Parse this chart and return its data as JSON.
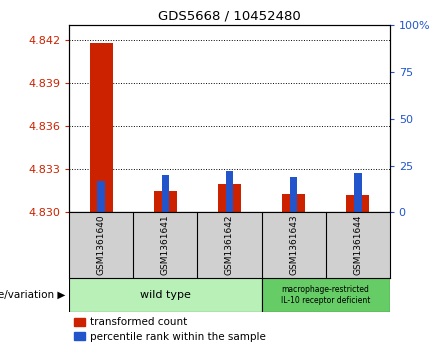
{
  "title": "GDS5668 / 10452480",
  "samples": [
    "GSM1361640",
    "GSM1361641",
    "GSM1361642",
    "GSM1361643",
    "GSM1361644"
  ],
  "transformed_count": [
    4.8418,
    4.8315,
    4.832,
    4.8313,
    4.8312
  ],
  "percentile_rank": [
    17,
    20,
    22,
    19,
    21
  ],
  "ylim_left": [
    4.83,
    4.843
  ],
  "ylim_right": [
    0,
    100
  ],
  "yticks_left": [
    4.83,
    4.833,
    4.836,
    4.839,
    4.842
  ],
  "yticks_right": [
    0,
    25,
    50,
    75,
    100
  ],
  "red_color": "#cc2200",
  "blue_color": "#2255cc",
  "bg_color_sample": "#d0d0d0",
  "bg_color_wildtype": "#b8f0b8",
  "bg_color_mutant": "#66cc66",
  "wildtype_label": "wild type",
  "mutant_label": "macrophage-restricted\nIL-10 receptor deficient",
  "legend1": "transformed count",
  "legend2": "percentile rank within the sample",
  "genotype_label": "genotype/variation",
  "left_color": "#cc2200",
  "right_color": "#2255cc"
}
